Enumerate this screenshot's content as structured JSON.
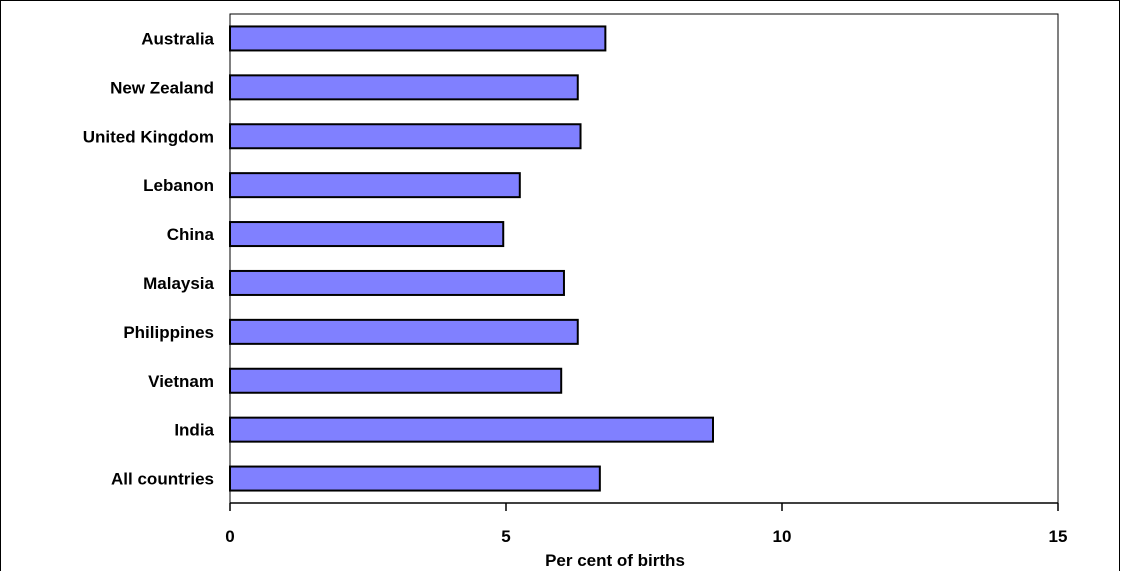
{
  "chart_data": {
    "type": "bar",
    "orientation": "horizontal",
    "categories": [
      "Australia",
      "New Zealand",
      "United Kingdom",
      "Lebanon",
      "China",
      "Malaysia",
      "Philippines",
      "Vietnam",
      "India",
      "All countries"
    ],
    "values": [
      6.8,
      6.3,
      6.35,
      5.25,
      4.95,
      6.05,
      6.3,
      6.0,
      8.75,
      6.7
    ],
    "title": "",
    "xlabel": "Per cent of births",
    "ylabel": "",
    "xlim": [
      0,
      15
    ],
    "xticks": [
      "0",
      "5",
      "10",
      "15"
    ],
    "grid": false,
    "legend": "none",
    "colors": {
      "bar_fill": "#8080ff",
      "bar_stroke": "#000000",
      "axis": "#000000"
    }
  }
}
